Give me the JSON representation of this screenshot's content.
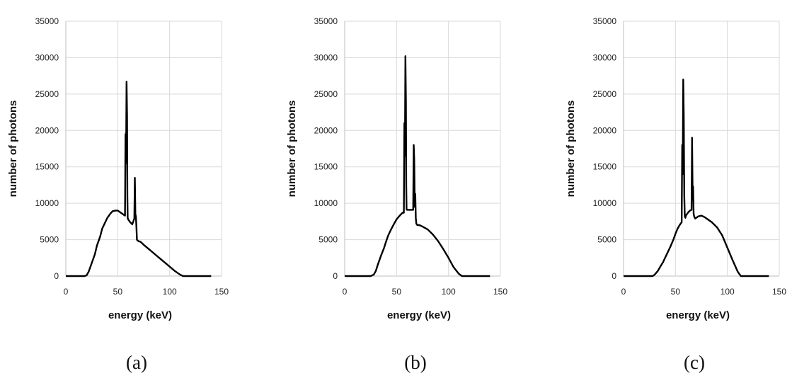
{
  "chart_data": [
    {
      "type": "line",
      "caption": "(a)",
      "xlabel": "energy (keV)",
      "ylabel": "number of photons",
      "xlim": [
        0,
        150
      ],
      "ylim": [
        0,
        35000
      ],
      "xticks": [
        0,
        50,
        100,
        150
      ],
      "yticks": [
        0,
        5000,
        10000,
        15000,
        20000,
        25000,
        30000,
        35000
      ],
      "grid": true,
      "series": [
        {
          "x": [
            0,
            15,
            18,
            20,
            22,
            25,
            28,
            30,
            33,
            35,
            38,
            40,
            43,
            45,
            48,
            50,
            53,
            55,
            56,
            57,
            57.5,
            58,
            58.5,
            59,
            59.3,
            59.6,
            60,
            62,
            64,
            66,
            66.5,
            67,
            67.5,
            68,
            68.5,
            69,
            70,
            72,
            75,
            80,
            85,
            90,
            95,
            100,
            105,
            110,
            113,
            115,
            118,
            120,
            125,
            130,
            135,
            140
          ],
          "y": [
            0,
            0,
            0,
            100,
            600,
            1800,
            3000,
            4200,
            5400,
            6500,
            7400,
            8000,
            8600,
            8900,
            9000,
            9000,
            8700,
            8500,
            8400,
            8300,
            19500,
            15500,
            26700,
            22000,
            11000,
            8000,
            7800,
            7400,
            7100,
            7900,
            13500,
            8500,
            8200,
            6800,
            5000,
            4900,
            4800,
            4700,
            4300,
            3700,
            3100,
            2500,
            1900,
            1300,
            700,
            200,
            0,
            0,
            0,
            0,
            0,
            0,
            0,
            0
          ]
        }
      ]
    },
    {
      "type": "line",
      "caption": "(b)",
      "xlabel": "energy (keV)",
      "ylabel": "number of photons",
      "xlim": [
        0,
        150
      ],
      "ylim": [
        0,
        35000
      ],
      "xticks": [
        0,
        50,
        100,
        150
      ],
      "yticks": [
        0,
        5000,
        10000,
        15000,
        20000,
        25000,
        30000,
        35000
      ],
      "grid": true,
      "series": [
        {
          "x": [
            0,
            25,
            28,
            30,
            32,
            35,
            38,
            40,
            42,
            45,
            48,
            50,
            53,
            55,
            56,
            57,
            57.5,
            58,
            58.5,
            59,
            59.3,
            59.6,
            60,
            62,
            64,
            66,
            66.5,
            67,
            67.5,
            68,
            68.5,
            69,
            70,
            72,
            75,
            80,
            85,
            90,
            95,
            100,
            105,
            110,
            113,
            115,
            118,
            120,
            125,
            130,
            135,
            140
          ],
          "y": [
            0,
            0,
            200,
            700,
            1600,
            2800,
            3900,
            4800,
            5600,
            6500,
            7300,
            7800,
            8300,
            8600,
            8700,
            8700,
            21000,
            16500,
            30200,
            24000,
            12500,
            9200,
            9100,
            9100,
            9100,
            9100,
            18000,
            16000,
            9500,
            11300,
            8000,
            7200,
            7000,
            7000,
            6800,
            6400,
            5700,
            4800,
            3700,
            2500,
            1200,
            300,
            0,
            0,
            0,
            0,
            0,
            0,
            0,
            0
          ]
        }
      ]
    },
    {
      "type": "line",
      "caption": "(c)",
      "xlabel": "energy (keV)",
      "ylabel": "number of photons",
      "xlim": [
        0,
        150
      ],
      "ylim": [
        0,
        35000
      ],
      "xticks": [
        0,
        50,
        100,
        150
      ],
      "yticks": [
        0,
        5000,
        10000,
        15000,
        20000,
        25000,
        30000,
        35000
      ],
      "grid": true,
      "series": [
        {
          "x": [
            0,
            28,
            30,
            33,
            35,
            38,
            40,
            42,
            45,
            48,
            50,
            52,
            54,
            55,
            56,
            56.5,
            57,
            57.5,
            58,
            58.5,
            59,
            59.3,
            59.6,
            60,
            62,
            64,
            65.5,
            66,
            66.5,
            67,
            67.5,
            68,
            69,
            70,
            72,
            75,
            78,
            80,
            85,
            90,
            95,
            100,
            105,
            110,
            113,
            115,
            118,
            120,
            125,
            130,
            135,
            140
          ],
          "y": [
            0,
            0,
            200,
            700,
            1200,
            1900,
            2500,
            3100,
            4000,
            5000,
            5800,
            6500,
            7000,
            7200,
            7400,
            18000,
            14000,
            27000,
            22000,
            11000,
            8200,
            8100,
            8000,
            8300,
            8700,
            9000,
            9100,
            19000,
            12000,
            12300,
            8600,
            8200,
            7900,
            8000,
            8200,
            8300,
            8100,
            7900,
            7400,
            6700,
            5600,
            3900,
            2200,
            600,
            0,
            0,
            0,
            0,
            0,
            0,
            0,
            0
          ]
        }
      ]
    }
  ]
}
